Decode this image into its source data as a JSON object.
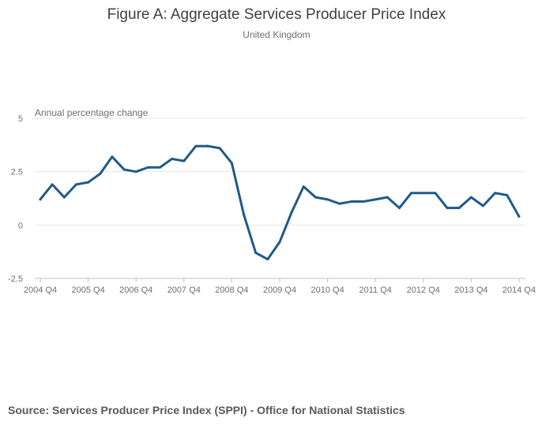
{
  "chart_data": {
    "type": "line",
    "title": "Figure A: Aggregate Services Producer Price Index",
    "subtitle": "United Kingdom",
    "ylabel": "Annual percentage change",
    "xlabel": "",
    "ylim": [
      -2.5,
      5
    ],
    "yticks": [
      -2.5,
      0,
      2.5,
      5
    ],
    "ytick_labels": [
      "-2.5",
      "0",
      "2.5",
      "5"
    ],
    "xtick_labels": [
      "2004 Q4",
      "2005 Q4",
      "2006 Q4",
      "2007 Q4",
      "2008 Q4",
      "2009 Q4",
      "2010 Q4",
      "2011 Q4",
      "2012 Q4",
      "2013 Q4",
      "2014 Q4"
    ],
    "x_start_year": 2004,
    "x_start_quarter": 4,
    "series": [
      {
        "name": "Aggregate SPPI",
        "color": "#1f5a8a",
        "values": [
          1.2,
          1.9,
          1.3,
          1.9,
          2.0,
          2.4,
          3.2,
          2.6,
          2.5,
          2.7,
          2.7,
          3.1,
          3.0,
          3.7,
          3.7,
          3.6,
          2.9,
          0.5,
          -1.3,
          -1.6,
          -0.8,
          0.6,
          1.8,
          1.3,
          1.2,
          1.0,
          1.1,
          1.1,
          1.2,
          1.3,
          0.8,
          1.5,
          1.5,
          1.5,
          0.8,
          0.8,
          1.3,
          0.9,
          1.5,
          1.4,
          0.4
        ]
      }
    ],
    "grid": true,
    "legend": "none"
  },
  "footer": {
    "source": "Source: Services Producer Price Index (SPPI) - Office for National Statistics"
  }
}
